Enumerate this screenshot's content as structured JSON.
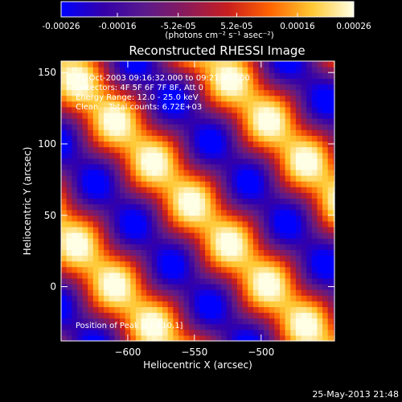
{
  "colorbar": {
    "tick_labels": [
      "-0.00026",
      "-0.00016",
      "-5.2e-05",
      "5.2e-05",
      "0.00016",
      "0.00026"
    ],
    "unit_label": "(photons cm⁻² s⁻¹ asec⁻²)",
    "range": [
      -0.00026,
      0.00026
    ],
    "colormap_stops": [
      "#0000ff",
      "#3300aa",
      "#5a1a8c",
      "#8b1a5a",
      "#c81e1e",
      "#ff6400",
      "#ffc832",
      "#ffffe6"
    ]
  },
  "chart_data": {
    "type": "heatmap",
    "title": "Reconstructed RHESSI Image",
    "xlabel": "Heliocentric X (arcsec)",
    "ylabel": "Heliocentric Y (arcsec)",
    "xlim": [
      -650,
      -445
    ],
    "ylim": [
      -38,
      158
    ],
    "x_ticks": [
      -600,
      -550,
      -500
    ],
    "y_ticks": [
      0,
      50,
      100,
      150
    ],
    "pixel_size_arcsec": 4,
    "pattern": {
      "description_values": "diagonal fringe pattern, peak near (-610, 1)",
      "wave_vector": [
        0.0545,
        0.0545
      ],
      "amplitude": 0.00024,
      "blob_wave_vector": [
        0.11,
        -0.11
      ],
      "blob_modulation": 5e-05
    },
    "annotations": [
      "21-Oct-2003 09:16:32.000 to 09:21:48.000",
      "Detectors: 4F 5F 6F 7F 8F, Att 0",
      "Energy Range: 12.0 - 25.0 keV",
      "Clean    Total counts: 6.72E+03"
    ],
    "peak_label": "Position of Peak = [-610,1]",
    "peak_position": [
      -610,
      1
    ]
  },
  "footer": {
    "timestamp": "25-May-2013 21:48"
  }
}
